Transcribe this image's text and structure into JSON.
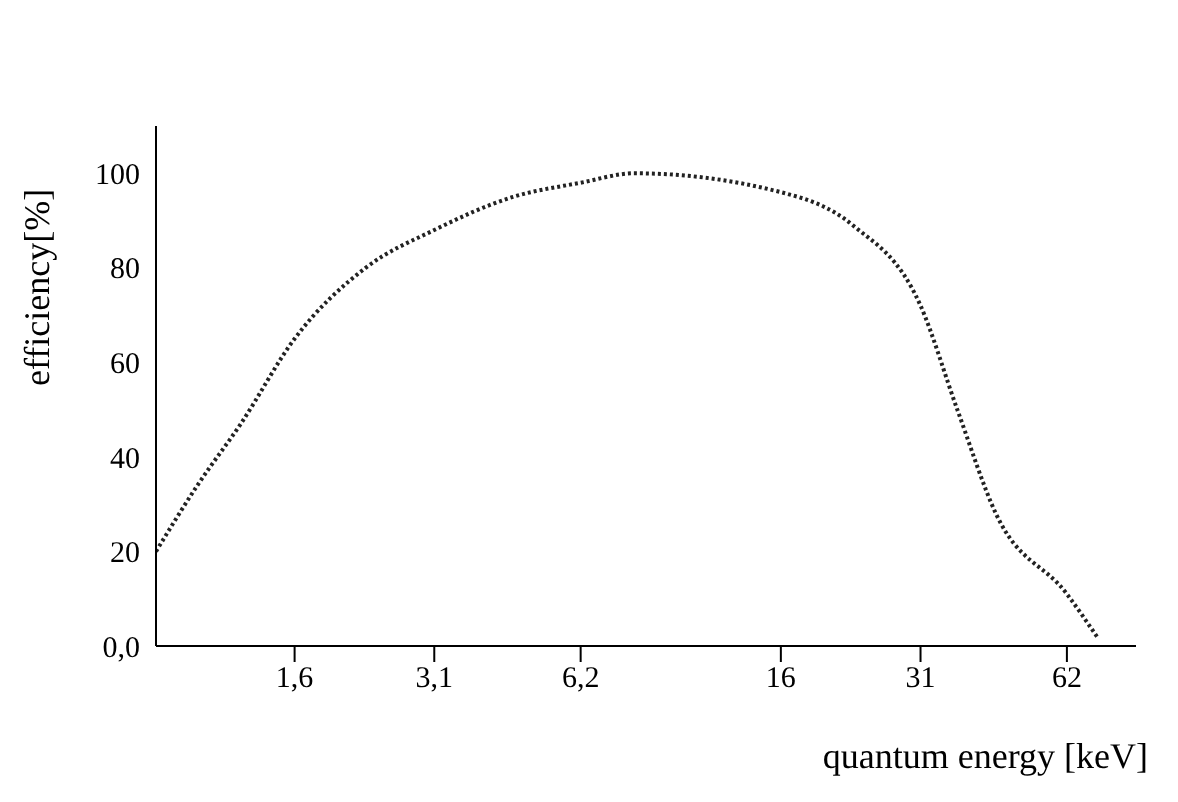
{
  "chart_data": {
    "type": "line",
    "xlabel": "quantum energy [keV]",
    "ylabel": "efficiency[%]",
    "log": "x",
    "line_style": "dotted",
    "marker": "none",
    "grid": false,
    "legend": false,
    "xlim": [
      0.83,
      86
    ],
    "xticks": [
      {
        "value": 1.6,
        "label": "1,6"
      },
      {
        "value": 3.1,
        "label": "3,1"
      },
      {
        "value": 6.2,
        "label": "6,2"
      },
      16,
      31,
      62
    ],
    "ylim": [
      0,
      110
    ],
    "yticks": [
      {
        "value": 0,
        "label": "0,0"
      },
      20,
      40,
      60,
      80,
      100
    ],
    "series": [
      {
        "color": "#222222",
        "x": [
          0.83,
          1.01,
          1.24,
          1.6,
          2.24,
          3.1,
          4.5,
          6.2,
          8.0,
          16,
          22.5,
          31,
          36.9,
          44.3,
          62,
          72
        ],
        "values": [
          20,
          34,
          47,
          65,
          80,
          88,
          95,
          98,
          100,
          96,
          89,
          72,
          50,
          28,
          11,
          1.5
        ]
      }
    ]
  }
}
